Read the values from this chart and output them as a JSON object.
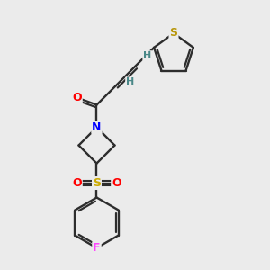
{
  "background_color": "#ebebeb",
  "bond_color": "#2d2d2d",
  "atom_colors": {
    "S_thiophene": "#b8960a",
    "S_sulfonyl": "#ccaa00",
    "N": "#0000ff",
    "O": "#ff0000",
    "F": "#ff44ff",
    "H": "#4a8888",
    "C": "#2d2d2d"
  },
  "figsize": [
    3.0,
    3.0
  ],
  "dpi": 100,
  "lw": 1.7,
  "lw_double_inner": 1.4
}
